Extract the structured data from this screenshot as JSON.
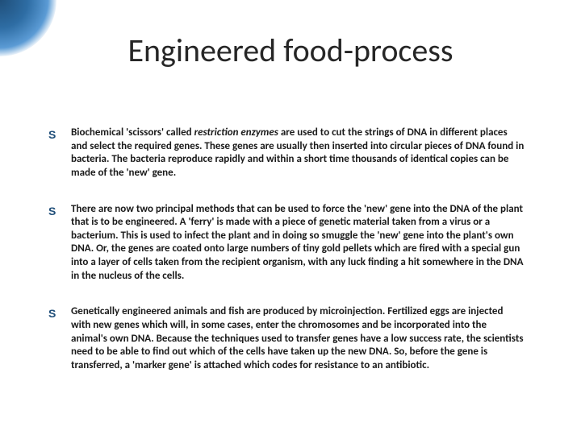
{
  "slide": {
    "title": "Engineered food-process",
    "title_fontsize": 40,
    "title_color": "#262626",
    "background_color": "#ffffff",
    "accent_gradient": [
      "#1f4e79",
      "#2e6da4",
      "#5b9bd5"
    ],
    "bullet_marker_glyph": "S",
    "bullet_marker_color": "#1f4e79",
    "body_fontsize": 13,
    "body_color": "#1a1a1a",
    "bullets": [
      {
        "prefix_bold": "Biochemical 'scissors' called ",
        "italic_bold": "restriction enzymes",
        "rest_bold": " are used to cut the strings of DNA in different places and select the required genes. These genes are usually then inserted into circular pieces of DNA found in bacteria. The bacteria reproduce rapidly and within a short time thousands of identical copies can be made of the 'new' gene."
      },
      {
        "prefix_bold": "There are now two principal methods that can be used to force the 'new' gene into the DNA of the plant that is to be engineered. A 'ferry' is made with a piece of genetic material taken from a virus or a bacterium. This is used to infect the plant and in doing so smuggle the 'new' gene into the plant's own DNA. Or, the genes are coated onto large numbers of tiny gold pellets which are fired with a special gun into a layer of cells taken from the recipient organism, with any luck finding a hit somewhere in the DNA in the nucleus of the cells.",
        "italic_bold": "",
        "rest_bold": ""
      },
      {
        "prefix_bold": " Genetically engineered animals and fish are produced by microinjection. Fertilized eggs are injected with new genes which will, in some cases, enter the chromosomes and be incorporated into the animal's own DNA. Because the techniques used to transfer genes have a low success rate, the scientists need to be able to find out which of the cells have taken up the new DNA. So, before the gene is transferred, a 'marker gene' is attached which codes for resistance to an antibiotic.",
        "italic_bold": "",
        "rest_bold": ""
      }
    ]
  }
}
